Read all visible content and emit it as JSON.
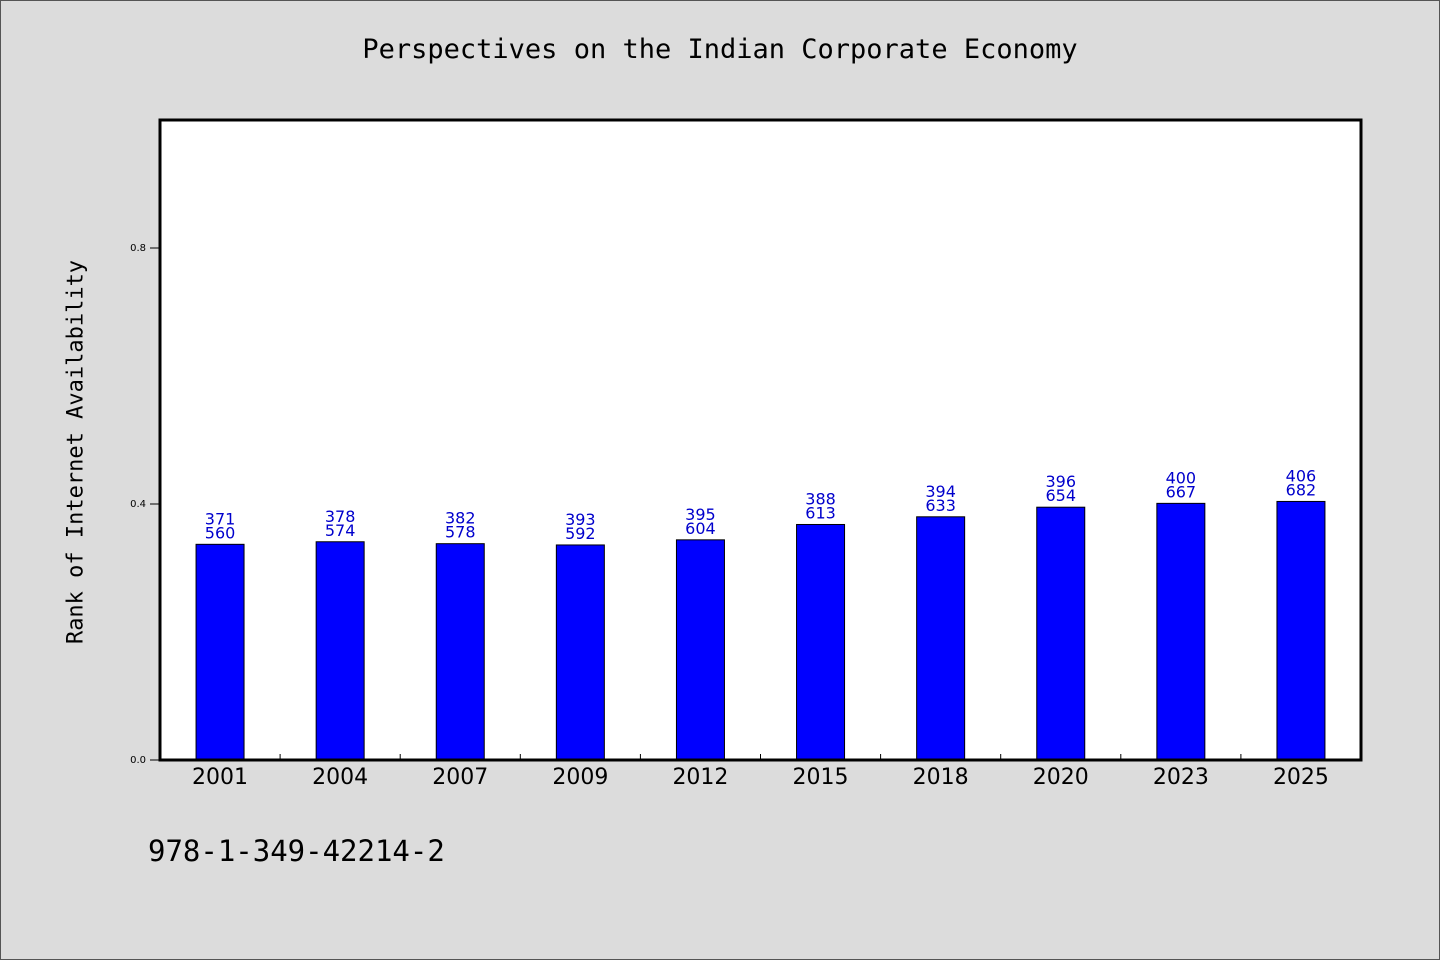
{
  "chart_data": {
    "type": "bar",
    "title": "Perspectives on the Indian Corporate Economy",
    "xlabel": "",
    "ylabel": "Rank of Internet Availability",
    "ylim": [
      0,
      1.0
    ],
    "yticks": [
      0.0,
      0.4,
      0.8
    ],
    "ytick_labels": [
      "0.0",
      "0.4",
      "0.8"
    ],
    "grid": false,
    "legend": "none",
    "categories": [
      "2001",
      "2004",
      "2007",
      "2009",
      "2012",
      "2015",
      "2018",
      "2020",
      "2023",
      "2025"
    ],
    "values": [
      0.337,
      0.341,
      0.338,
      0.336,
      0.344,
      0.368,
      0.38,
      0.395,
      0.401,
      0.404
    ],
    "label_top": [
      "371",
      "378",
      "382",
      "393",
      "395",
      "388",
      "394",
      "396",
      "400",
      "406"
    ],
    "label_bottom": [
      "560",
      "574",
      "578",
      "592",
      "604",
      "613",
      "633",
      "654",
      "667",
      "682"
    ],
    "colors": {
      "bar": "#0000ff",
      "bar_edge": "#000000",
      "data_label": "#0000cc",
      "plot_background": "#ffffff",
      "figure_background": "#dcdcdc"
    }
  },
  "footer": {
    "isbn": "978-1-349-42214-2"
  }
}
